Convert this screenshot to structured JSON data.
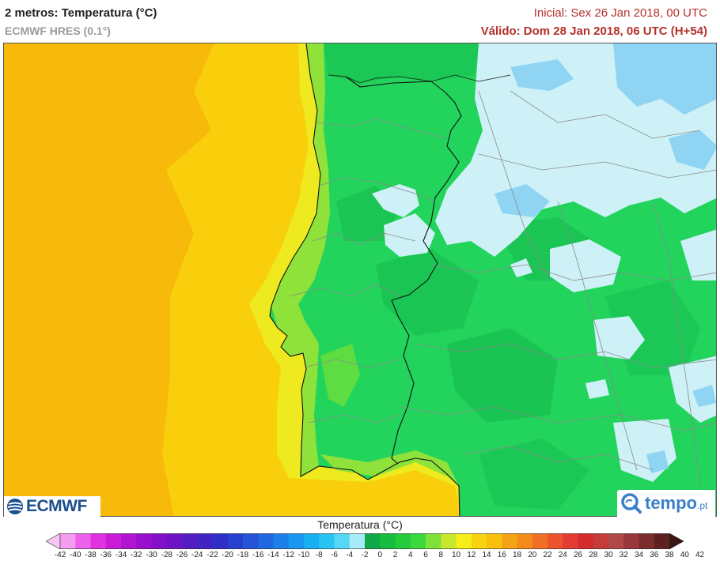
{
  "header": {
    "title": "2 metros: Temperatura (°C)",
    "model": "ECMWF HRES (0.1°)",
    "init": "Inicial: Sex 26 Jan 2018, 00 UTC",
    "valid": "Válido: Dom 28 Jan 2018, 06 UTC (H+54)"
  },
  "logos": {
    "ecmwf": "ECMWF",
    "tempo_main": "tempo",
    "tempo_suffix": ".pt"
  },
  "legend": {
    "title": "Temperatura (°C)",
    "ticks": [
      "-42",
      "-40",
      "-38",
      "-36",
      "-34",
      "-32",
      "-30",
      "-28",
      "-26",
      "-24",
      "-22",
      "-20",
      "-18",
      "-16",
      "-14",
      "-12",
      "-10",
      "-8",
      "-6",
      "-4",
      "-2",
      "0",
      "2",
      "4",
      "6",
      "8",
      "10",
      "12",
      "14",
      "16",
      "18",
      "20",
      "22",
      "24",
      "26",
      "28",
      "30",
      "32",
      "34",
      "36",
      "38",
      "40",
      "42"
    ],
    "colors": [
      "#f7c6f2",
      "#f39cf0",
      "#ec62ea",
      "#e032e0",
      "#c81cd6",
      "#b014d0",
      "#9810cc",
      "#8210c8",
      "#6c14c4",
      "#561cc4",
      "#4224c4",
      "#3030c8",
      "#2840d0",
      "#2454d8",
      "#2068e0",
      "#1c80e8",
      "#1898ee",
      "#18b0f2",
      "#28c4f4",
      "#58d6f6",
      "#a8ecf8",
      "#10a848",
      "#18bc40",
      "#24cc3c",
      "#3cd83c",
      "#80e03c",
      "#c8e830",
      "#f6ee18",
      "#f8d410",
      "#f8c00c",
      "#f4a414",
      "#f48c1c",
      "#f07028",
      "#ec5430",
      "#e43c34",
      "#d42c2c",
      "#c43c3c",
      "#b04848",
      "#98383c",
      "#7c2c2c",
      "#5c2020",
      "#3c1414"
    ]
  },
  "map_info": {
    "region": "Portugal",
    "field_colors": {
      "sea_outer": "#f7b90a",
      "sea_inner": "#f9cf0b",
      "coast_sea": "#eeea1f",
      "land": "#22d35c",
      "land_dark": "#17bf50",
      "coast_land": "#8ee23a",
      "cold": "#cdf1f6",
      "cold_blue": "#8fd4f2"
    }
  }
}
